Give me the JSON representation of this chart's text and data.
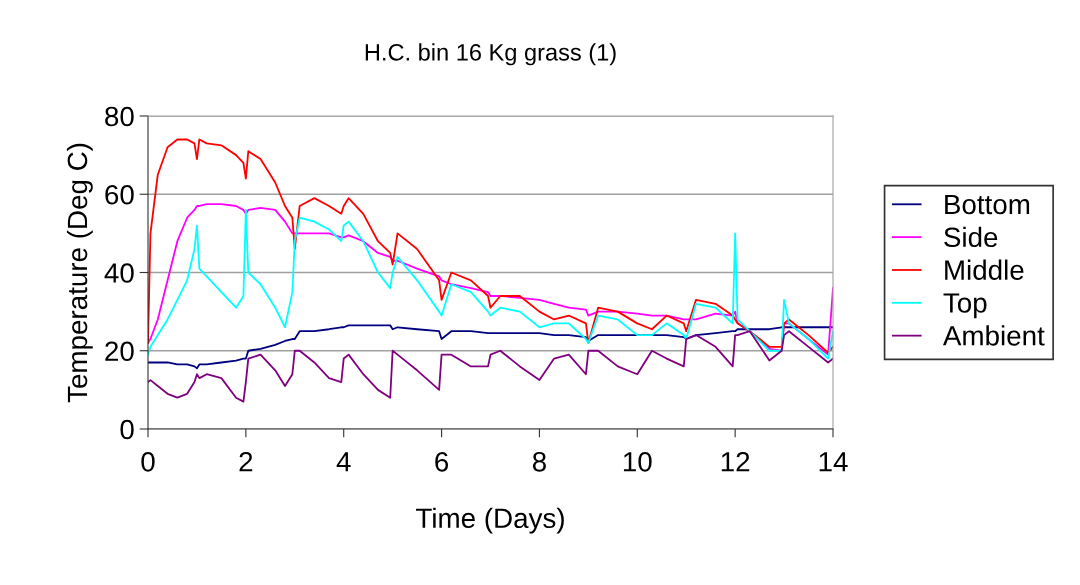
{
  "chart_data": {
    "type": "line",
    "title": "H.C. bin 16 Kg grass (1)",
    "xlabel": "Time (Days)",
    "ylabel": "Temperature (Deg C)",
    "x": [
      0,
      0.05,
      0.2,
      0.4,
      0.6,
      0.8,
      0.95,
      1.0,
      1.05,
      1.2,
      1.5,
      1.8,
      1.95,
      2.0,
      2.05,
      2.3,
      2.6,
      2.8,
      2.95,
      3.0,
      3.1,
      3.4,
      3.7,
      3.95,
      4.0,
      4.1,
      4.4,
      4.7,
      4.95,
      5.0,
      5.1,
      5.5,
      5.95,
      6.0,
      6.2,
      6.6,
      6.95,
      7.0,
      7.2,
      7.6,
      8.0,
      8.3,
      8.6,
      8.95,
      9.0,
      9.2,
      9.6,
      10.0,
      10.3,
      10.6,
      10.95,
      11.0,
      11.2,
      11.6,
      11.95,
      12.0,
      12.05,
      12.3,
      12.7,
      12.95,
      13.0,
      13.1,
      13.5,
      13.9,
      14.0
    ],
    "series": [
      {
        "name": "Bottom",
        "color": "#000080",
        "values": [
          17,
          17,
          17,
          17,
          16.5,
          16.5,
          16,
          15.5,
          16.5,
          16.5,
          17,
          17.5,
          18,
          18,
          20,
          20.5,
          21.5,
          22.5,
          23,
          23,
          25,
          25,
          25.5,
          26,
          26,
          26.5,
          26.5,
          26.5,
          26.5,
          25.5,
          26,
          25.5,
          25,
          23,
          25,
          25,
          24.5,
          24.5,
          24.5,
          24.5,
          24.5,
          24,
          24,
          23.5,
          22.5,
          24,
          24,
          24,
          24,
          24,
          23.5,
          23,
          24,
          24.5,
          25,
          25,
          25.5,
          25.5,
          25.5,
          26,
          26,
          26,
          26,
          26,
          26
        ]
      },
      {
        "name": "Side",
        "color": "#ff00ff",
        "values": [
          22,
          23,
          28,
          38,
          48,
          54,
          56,
          57,
          57,
          57.5,
          57.5,
          57,
          56,
          55,
          56,
          56.5,
          56,
          53,
          50,
          50,
          50,
          50,
          50,
          49,
          49,
          49.5,
          48,
          45,
          44,
          43,
          43,
          41,
          39,
          38,
          37,
          36,
          35,
          34,
          34,
          33.5,
          33,
          32,
          31,
          30.5,
          29,
          30,
          30,
          29.5,
          29,
          29,
          28,
          28,
          28,
          29.5,
          29,
          30,
          27,
          25,
          20.5,
          20,
          27,
          27,
          23,
          19,
          36
        ]
      },
      {
        "name": "Middle",
        "color": "#ff0000",
        "values": [
          22,
          50,
          65,
          72,
          74,
          74,
          73,
          69,
          74,
          73,
          72.5,
          70,
          68,
          64,
          71,
          69,
          63,
          57,
          54,
          46,
          57,
          59,
          57,
          55,
          57,
          59,
          55,
          48,
          45,
          42,
          50,
          46,
          38,
          33,
          40,
          38,
          34,
          31,
          34,
          34,
          30,
          28,
          29,
          27,
          22,
          31,
          30,
          27,
          25.5,
          29,
          27,
          25,
          33,
          32,
          29,
          28,
          27,
          25,
          21,
          21,
          27,
          28,
          24,
          19.5,
          21
        ]
      },
      {
        "name": "Top",
        "color": "#00ffff",
        "values": [
          19,
          21,
          24,
          28,
          33,
          38,
          46,
          52,
          41,
          39,
          35,
          31,
          34,
          56,
          40,
          37,
          31,
          26,
          35,
          48,
          54,
          53,
          51,
          48,
          52,
          53,
          48,
          40,
          36,
          40,
          44,
          38,
          30,
          29,
          37,
          35,
          30,
          29,
          31,
          30,
          26,
          27,
          27,
          23,
          22,
          29,
          28,
          24,
          24,
          27,
          24,
          23,
          32,
          31,
          27,
          50,
          28,
          25,
          20,
          20,
          33,
          27,
          23,
          18,
          25
        ]
      },
      {
        "name": "Ambient",
        "color": "#800080",
        "values": [
          12,
          12.5,
          11,
          9,
          8,
          9,
          12,
          14,
          13,
          14,
          13,
          8,
          7,
          12,
          18,
          19,
          15,
          11,
          14,
          20,
          20,
          17,
          13,
          12,
          18,
          19,
          14,
          10,
          8,
          20,
          19,
          15,
          10,
          19,
          19,
          16,
          16,
          19,
          20,
          16,
          12.5,
          18,
          19,
          14,
          20,
          20,
          16,
          14,
          20,
          18,
          16,
          23,
          24,
          21,
          16,
          24,
          24,
          25,
          17.5,
          20,
          24,
          25,
          21,
          17,
          18
        ]
      }
    ],
    "xlim": [
      0,
      14
    ],
    "xticks": [
      0,
      2,
      4,
      6,
      8,
      10,
      12,
      14
    ],
    "ylim": [
      0,
      80
    ],
    "yticks": [
      0,
      20,
      40,
      60,
      80
    ],
    "grid": "y",
    "legend": "right",
    "marker": "none",
    "line_style": "solid"
  }
}
